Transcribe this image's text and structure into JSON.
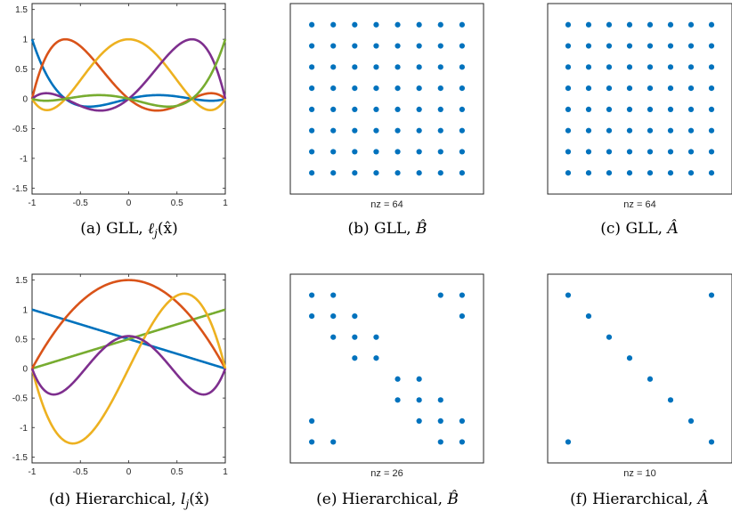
{
  "chart_data": [
    {
      "type": "line",
      "caption_prefix": "(a) GLL, ",
      "caption_math": "ℓ",
      "caption_sub": "j",
      "caption_arg": "(x̂)",
      "xlim": [
        -1,
        1
      ],
      "ylim": [
        -1.6,
        1.6
      ],
      "xticks": [
        -1,
        -0.5,
        0,
        0.5,
        1
      ],
      "xtick_labels": [
        "-1",
        "-0.5",
        "0",
        "0.5",
        "1"
      ],
      "yticks": [
        1.5,
        1,
        0.5,
        0,
        -0.5,
        -1,
        -1.5
      ],
      "ytick_labels": [
        "1.5",
        "1",
        "0.5",
        "0",
        "-0.5",
        "-1",
        "-1.5"
      ],
      "basis": "gll",
      "nodes": [
        -1,
        -0.6547,
        0,
        0.6547,
        1
      ],
      "series_colors": [
        "#0072BD",
        "#D95319",
        "#EDB120",
        "#7E2F8E",
        "#77AC30"
      ]
    },
    {
      "type": "scatter",
      "caption_prefix": "(b) GLL, ",
      "caption_math": "B̂",
      "nz_label": "nz = 64",
      "n": 8,
      "pattern": "full",
      "marker_color": "#0072BD"
    },
    {
      "type": "scatter",
      "caption_prefix": "(c) GLL, ",
      "caption_math": "Â",
      "nz_label": "nz = 64",
      "n": 8,
      "pattern": "full",
      "marker_color": "#0072BD"
    },
    {
      "type": "line",
      "caption_prefix": "(d) Hierarchical, ",
      "caption_math": "l",
      "caption_sub": "j",
      "caption_arg": "(x̂)",
      "xlim": [
        -1,
        1
      ],
      "ylim": [
        -1.6,
        1.6
      ],
      "xticks": [
        -1,
        -0.5,
        0,
        0.5,
        1
      ],
      "xtick_labels": [
        "-1",
        "-0.5",
        "0",
        "0.5",
        "1"
      ],
      "yticks": [
        1.5,
        1,
        0.5,
        0,
        -0.5,
        -1,
        -1.5
      ],
      "ytick_labels": [
        "1.5",
        "1",
        "0.5",
        "0",
        "-0.5",
        "-1",
        "-1.5"
      ],
      "basis": "hierarchical",
      "series_colors": [
        "#0072BD",
        "#77AC30",
        "#D95319",
        "#EDB120",
        "#7E2F8E"
      ]
    },
    {
      "type": "scatter",
      "caption_prefix": "(e) Hierarchical, ",
      "caption_math": "B̂",
      "nz_label": "nz = 26",
      "n": 8,
      "pattern": "list",
      "points": [
        [
          0,
          0
        ],
        [
          0,
          1
        ],
        [
          0,
          6
        ],
        [
          0,
          7
        ],
        [
          1,
          0
        ],
        [
          1,
          1
        ],
        [
          1,
          2
        ],
        [
          1,
          7
        ],
        [
          2,
          1
        ],
        [
          2,
          2
        ],
        [
          2,
          3
        ],
        [
          3,
          2
        ],
        [
          3,
          3
        ],
        [
          4,
          4
        ],
        [
          4,
          5
        ],
        [
          5,
          4
        ],
        [
          5,
          5
        ],
        [
          5,
          6
        ],
        [
          6,
          0
        ],
        [
          6,
          5
        ],
        [
          6,
          6
        ],
        [
          6,
          7
        ],
        [
          7,
          0
        ],
        [
          7,
          1
        ],
        [
          7,
          6
        ],
        [
          7,
          7
        ]
      ],
      "marker_color": "#0072BD"
    },
    {
      "type": "scatter",
      "caption_prefix": "(f) Hierarchical, ",
      "caption_math": "Â",
      "nz_label": "nz = 10",
      "n": 8,
      "pattern": "list",
      "points": [
        [
          0,
          0
        ],
        [
          0,
          7
        ],
        [
          1,
          1
        ],
        [
          2,
          2
        ],
        [
          3,
          3
        ],
        [
          4,
          4
        ],
        [
          5,
          5
        ],
        [
          6,
          6
        ],
        [
          7,
          0
        ],
        [
          7,
          7
        ]
      ],
      "marker_color": "#0072BD"
    }
  ]
}
